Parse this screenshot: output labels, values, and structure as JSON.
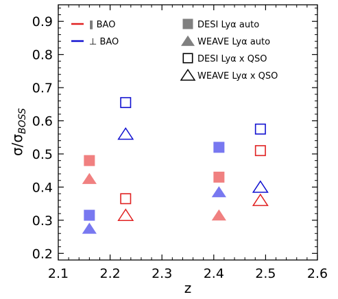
{
  "chart_data": {
    "type": "scatter",
    "xlabel": "z",
    "ylabel_main": "σ/σ",
    "ylabel_sub": "BOSS",
    "xlim": [
      2.1,
      2.6
    ],
    "ylim": [
      0.18,
      0.95
    ],
    "xticks": [
      2.1,
      2.2,
      2.3,
      2.4,
      2.5,
      2.6
    ],
    "yticks": [
      0.2,
      0.3,
      0.4,
      0.5,
      0.6,
      0.7,
      0.8,
      0.9
    ],
    "xtick_labels": [
      "2.1",
      "2.2",
      "2.3",
      "2.4",
      "2.5",
      "2.6"
    ],
    "ytick_labels": [
      "0.2",
      "0.3",
      "0.4",
      "0.5",
      "0.6",
      "0.7",
      "0.8",
      "0.9"
    ],
    "grid": false,
    "colors": {
      "par_line": "#e02020",
      "perp_line": "#1010d0",
      "par_filled": "#f08080",
      "perp_filled": "#7878f0",
      "par_open": "#e02020",
      "perp_open": "#1010d0",
      "legend_marker": "#808080"
    },
    "legend_left": {
      "position": "top-left",
      "items": [
        {
          "label": "∥ BAO",
          "color": "#e02020"
        },
        {
          "label": "⊥ BAO",
          "color": "#1010d0"
        }
      ]
    },
    "legend_right": {
      "position": "top-center",
      "items": [
        {
          "label": "DESI Lyα auto",
          "marker": "square",
          "filled": true
        },
        {
          "label": "WEAVE Lyα auto",
          "marker": "triangle",
          "filled": true
        },
        {
          "label": "DESI Lyα x QSO",
          "marker": "square",
          "filled": false
        },
        {
          "label": "WEAVE Lyα x QSO",
          "marker": "triangle",
          "filled": false
        }
      ]
    },
    "series": [
      {
        "marker": "square",
        "filled": true,
        "component": "par",
        "x": [
          2.16,
          2.41
        ],
        "y": [
          0.48,
          0.43
        ]
      },
      {
        "marker": "square",
        "filled": true,
        "component": "perp",
        "x": [
          2.16,
          2.41
        ],
        "y": [
          0.315,
          0.52
        ]
      },
      {
        "marker": "triangle",
        "filled": true,
        "component": "par",
        "x": [
          2.16,
          2.41
        ],
        "y": [
          0.425,
          0.315
        ]
      },
      {
        "marker": "triangle",
        "filled": true,
        "component": "perp",
        "x": [
          2.16,
          2.41
        ],
        "y": [
          0.275,
          0.385
        ]
      },
      {
        "marker": "square",
        "filled": false,
        "component": "par",
        "x": [
          2.23,
          2.49
        ],
        "y": [
          0.365,
          0.51
        ]
      },
      {
        "marker": "square",
        "filled": false,
        "component": "perp",
        "x": [
          2.23,
          2.49
        ],
        "y": [
          0.655,
          0.575
        ]
      },
      {
        "marker": "triangle",
        "filled": false,
        "component": "par",
        "x": [
          2.23,
          2.49
        ],
        "y": [
          0.315,
          0.36
        ]
      },
      {
        "marker": "triangle",
        "filled": false,
        "component": "perp",
        "x": [
          2.23,
          2.49
        ],
        "y": [
          0.56,
          0.4
        ]
      }
    ]
  }
}
